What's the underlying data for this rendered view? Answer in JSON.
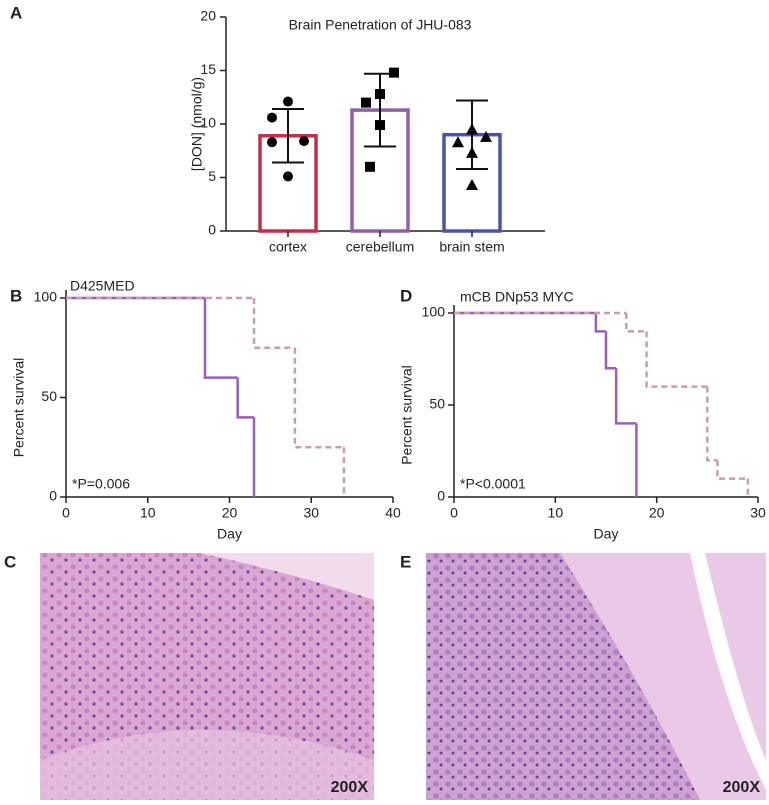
{
  "chart_data": [
    {
      "type": "bar",
      "panel_label": "A",
      "title": "Brain Penetration of JHU-083",
      "ylabel": "[DON] (nmol/g)",
      "categories": [
        "cortex",
        "cerebellum",
        "brain stem"
      ],
      "values": [
        8.9,
        11.3,
        9.0
      ],
      "errors": [
        2.5,
        3.4,
        3.2
      ],
      "colors": [
        "#c0304a",
        "#8e5ea6",
        "#4a55a8"
      ],
      "markers": [
        "circle",
        "square",
        "triangle"
      ],
      "points": [
        [
          12.1,
          10.6,
          8.4,
          8.3,
          5.1
        ],
        [
          14.8,
          12.8,
          12.0,
          9.9,
          6.0
        ],
        [
          9.5,
          8.8,
          8.3,
          7.3,
          4.3
        ]
      ],
      "ylim": [
        0,
        20
      ],
      "yticks": [
        0,
        5,
        10,
        15,
        20
      ]
    },
    {
      "type": "step",
      "panel_label": "B",
      "title": "D425MED",
      "annotation": "*P=0.006",
      "xlabel": "Day",
      "ylabel": "Percent survival",
      "xlim": [
        0,
        40
      ],
      "xticks": [
        0,
        10,
        20,
        30,
        40
      ],
      "ylim": [
        0,
        100
      ],
      "yticks": [
        0,
        50,
        100
      ],
      "series": [
        {
          "color": "#9b5fb4",
          "dashed": false,
          "x": [
            0,
            17,
            21,
            23
          ],
          "values": [
            100,
            60,
            40,
            0
          ]
        },
        {
          "color": "#c6a0a6",
          "dashed": true,
          "x": [
            0,
            23,
            28,
            34
          ],
          "values": [
            100,
            75,
            25,
            0
          ]
        }
      ]
    },
    {
      "type": "step",
      "panel_label": "D",
      "title": "mCB DNp53 MYC",
      "annotation": "*P<0.0001",
      "xlabel": "Day",
      "ylabel": "Percent survival",
      "xlim": [
        0,
        30
      ],
      "xticks": [
        0,
        10,
        20,
        30
      ],
      "ylim": [
        0,
        100
      ],
      "yticks": [
        0,
        50,
        100
      ],
      "series": [
        {
          "color": "#9b5fb4",
          "dashed": false,
          "x": [
            0,
            14,
            15,
            16,
            18
          ],
          "values": [
            100,
            90,
            70,
            40,
            0
          ]
        },
        {
          "color": "#c6a0a6",
          "dashed": true,
          "x": [
            0,
            17,
            19,
            25,
            26,
            29
          ],
          "values": [
            100,
            90,
            60,
            20,
            10,
            0
          ]
        }
      ]
    }
  ],
  "images": [
    {
      "panel_label": "C",
      "magnification": "200X"
    },
    {
      "panel_label": "E",
      "magnification": "200X"
    }
  ]
}
